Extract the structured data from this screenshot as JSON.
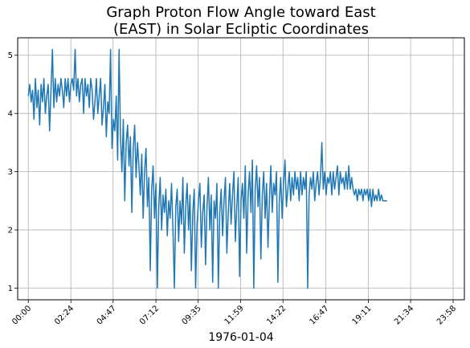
{
  "chart_data": {
    "type": "line",
    "title_lines": [
      "Graph Proton Flow Angle toward East",
      "(EAST) in Solar Ecliptic Coordinates"
    ],
    "xlabel": "1976-01-04",
    "ylabel": "",
    "x_unit": "hours since 1976-01-04 00:00",
    "xlim": [
      -0.6,
      24.6
    ],
    "ylim": [
      0.8,
      5.3
    ],
    "xticks": [
      0,
      2.4,
      4.783,
      7.2,
      9.583,
      11.983,
      14.367,
      16.783,
      19.183,
      21.567,
      23.967
    ],
    "xtick_labels": [
      "00:00",
      "02:24",
      "04:47",
      "07:12",
      "09:35",
      "11:59",
      "14:22",
      "16:47",
      "19:11",
      "21:34",
      "23:58"
    ],
    "yticks": [
      1,
      2,
      3,
      4,
      5
    ],
    "ytick_labels": [
      "1",
      "2",
      "3",
      "4",
      "5"
    ],
    "grid": true,
    "series_color": "#1f77b4",
    "x_start": 0,
    "x_step": 0.08,
    "values": [
      4.3,
      4.5,
      4.2,
      4.4,
      3.9,
      4.6,
      4.1,
      4.4,
      3.8,
      4.5,
      4.2,
      4.6,
      4.0,
      4.3,
      4.5,
      3.7,
      4.4,
      5.1,
      4.1,
      4.6,
      4.2,
      4.5,
      4.3,
      4.6,
      4.4,
      4.1,
      4.6,
      4.3,
      4.6,
      4.2,
      4.5,
      4.6,
      4.4,
      5.1,
      4.3,
      4.6,
      4.2,
      4.5,
      4.6,
      4.0,
      4.6,
      4.3,
      4.5,
      4.1,
      4.6,
      4.4,
      3.9,
      4.2,
      4.6,
      4.0,
      4.3,
      4.6,
      3.8,
      4.1,
      4.5,
      3.6,
      4.2,
      4.0,
      5.1,
      3.4,
      3.9,
      3.7,
      4.3,
      3.2,
      5.1,
      3.6,
      3.0,
      3.9,
      2.5,
      3.5,
      3.8,
      3.1,
      3.6,
      2.3,
      3.4,
      3.8,
      2.9,
      3.5,
      3.1,
      2.6,
      3.3,
      2.2,
      3.0,
      3.4,
      2.4,
      2.9,
      1.3,
      2.7,
      3.1,
      2.2,
      2.8,
      1.0,
      2.4,
      2.9,
      2.0,
      2.6,
      2.3,
      2.7,
      1.9,
      2.5,
      2.2,
      2.8,
      2.0,
      1.0,
      2.4,
      2.7,
      1.8,
      2.5,
      2.1,
      2.9,
      1.6,
      2.4,
      2.8,
      2.0,
      2.6,
      1.3,
      2.3,
      2.7,
      1.0,
      2.1,
      2.5,
      2.8,
      1.7,
      2.3,
      2.6,
      1.4,
      2.4,
      2.9,
      2.0,
      2.6,
      1.1,
      2.5,
      2.2,
      2.8,
      1.0,
      2.3,
      2.7,
      1.9,
      2.5,
      2.9,
      1.6,
      2.3,
      2.8,
      2.1,
      2.6,
      3.0,
      1.8,
      2.4,
      2.9,
      1.2,
      2.5,
      2.8,
      2.2,
      3.1,
      1.6,
      2.6,
      3.0,
      2.3,
      3.2,
      1.0,
      2.7,
      3.1,
      2.4,
      2.9,
      1.5,
      2.6,
      3.0,
      2.2,
      2.8,
      1.7,
      2.5,
      3.1,
      2.3,
      2.8,
      2.6,
      3.0,
      1.1,
      2.5,
      2.9,
      2.2,
      2.8,
      3.2,
      2.4,
      2.7,
      3.0,
      2.5,
      2.9,
      2.6,
      3.0,
      2.7,
      2.9,
      2.5,
      3.0,
      2.6,
      2.9,
      2.7,
      3.0,
      1.0,
      2.6,
      2.9,
      2.7,
      3.0,
      2.5,
      2.8,
      3.0,
      2.6,
      2.9,
      3.5,
      2.7,
      3.0,
      2.6,
      2.9,
      2.8,
      3.0,
      2.6,
      3.0,
      2.7,
      2.9,
      3.1,
      2.6,
      3.0,
      2.8,
      2.9,
      2.7,
      3.0,
      2.7,
      3.1,
      2.7,
      2.9,
      2.7,
      2.6,
      2.7,
      2.5,
      2.7,
      2.6,
      2.7,
      2.5,
      2.7,
      2.6,
      2.7,
      2.5,
      2.7,
      2.4,
      2.7,
      2.5,
      2.6,
      2.5,
      2.7,
      2.5,
      2.6,
      2.5,
      2.5,
      2.5,
      2.5
    ]
  }
}
